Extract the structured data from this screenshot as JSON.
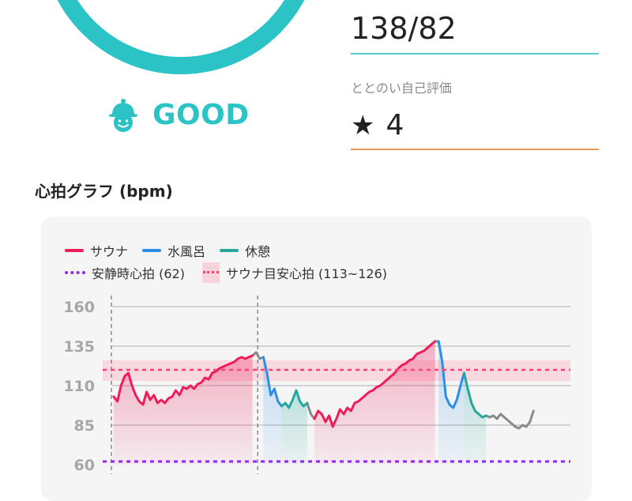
{
  "summary": {
    "status_label": "GOOD",
    "status_icon": "smiling-sauna-hat-icon",
    "accent_color": "#2cc3c7"
  },
  "blood_pressure": {
    "value": "138/82"
  },
  "rating": {
    "label": "ととのい自己評価",
    "star": "★",
    "value": "4"
  },
  "section": {
    "title": "心拍グラフ (bpm)"
  },
  "legend": {
    "sauna": "サウナ",
    "cold_bath": "水風呂",
    "rest": "休憩",
    "resting_hr": "安静時心拍 (62)",
    "sauna_target": "サウナ目安心拍 (113~126)"
  },
  "colors": {
    "sauna": "#ef1c5a",
    "cold_bath": "#2b8ee8",
    "rest": "#25a89c",
    "other": "#8a8a8a",
    "resting_hr": "#8a2be2",
    "sauna_target_line": "#f0457a",
    "sauna_target_band": "#f9d3dc"
  },
  "chart_data": {
    "type": "line",
    "y_ticks": [
      "160",
      "135",
      "110",
      "85",
      "60"
    ],
    "ylim": [
      60,
      160
    ],
    "resting_hr": 62,
    "sauna_target_range": [
      113,
      126
    ],
    "sauna_target_line": 120,
    "series": [
      {
        "name": "サウナ",
        "segments": [
          [
            [
              0,
              103
            ],
            [
              1,
              100
            ],
            [
              2,
              110
            ],
            [
              3,
              116
            ],
            [
              4,
              118
            ],
            [
              5,
              110
            ],
            [
              6,
              104
            ],
            [
              7,
              100
            ],
            [
              8,
              98
            ],
            [
              9,
              106
            ],
            [
              10,
              101
            ],
            [
              11,
              104
            ],
            [
              12,
              99
            ],
            [
              13,
              101
            ],
            [
              14,
              99
            ],
            [
              15,
              102
            ],
            [
              16,
              103
            ],
            [
              17,
              107
            ],
            [
              18,
              104
            ],
            [
              19,
              109
            ],
            [
              20,
              108
            ],
            [
              21,
              110
            ],
            [
              22,
              108
            ],
            [
              23,
              111
            ],
            [
              24,
              112
            ],
            [
              25,
              115
            ],
            [
              26,
              114
            ],
            [
              27,
              118
            ],
            [
              28,
              119
            ],
            [
              29,
              121
            ],
            [
              30,
              122
            ],
            [
              31,
              123
            ],
            [
              32,
              124
            ],
            [
              33,
              125
            ],
            [
              34,
              127
            ],
            [
              35,
              128
            ],
            [
              36,
              127
            ],
            [
              37,
              128
            ],
            [
              38,
              129
            ]
          ],
          [
            [
              55,
              89
            ],
            [
              56,
              94
            ],
            [
              57,
              92
            ],
            [
              58,
              87
            ],
            [
              59,
              91
            ],
            [
              60,
              84
            ],
            [
              61,
              89
            ],
            [
              62,
              95
            ],
            [
              63,
              92
            ],
            [
              64,
              96
            ],
            [
              65,
              94
            ],
            [
              66,
              99
            ],
            [
              67,
              100
            ],
            [
              68,
              102
            ],
            [
              69,
              104
            ],
            [
              70,
              106
            ],
            [
              71,
              107
            ],
            [
              72,
              109
            ],
            [
              73,
              110
            ],
            [
              74,
              112
            ],
            [
              75,
              114
            ],
            [
              76,
              116
            ],
            [
              77,
              118
            ],
            [
              78,
              121
            ],
            [
              79,
              123
            ],
            [
              80,
              124
            ],
            [
              81,
              126
            ],
            [
              82,
              127
            ],
            [
              83,
              130
            ],
            [
              84,
              131
            ],
            [
              85,
              132
            ],
            [
              86,
              134
            ],
            [
              87,
              136
            ],
            [
              88,
              138
            ]
          ]
        ]
      },
      {
        "name": "水風呂",
        "segments": [
          [
            [
              41,
              128
            ],
            [
              42,
              118
            ],
            [
              43,
              104
            ],
            [
              44,
              108
            ],
            [
              45,
              100
            ],
            [
              46,
              97
            ]
          ],
          [
            [
              89,
              138
            ],
            [
              90,
              125
            ],
            [
              91,
              103
            ],
            [
              92,
              98
            ],
            [
              93,
              96
            ],
            [
              94,
              101
            ],
            [
              95,
              110
            ],
            [
              96,
              118
            ]
          ]
        ]
      },
      {
        "name": "休憩",
        "segments": [
          [
            [
              46,
              97
            ],
            [
              47,
              99
            ],
            [
              48,
              96
            ],
            [
              49,
              101
            ],
            [
              50,
              107
            ],
            [
              51,
              100
            ],
            [
              52,
              97
            ],
            [
              53,
              99
            ]
          ],
          [
            [
              96,
              118
            ],
            [
              97,
              108
            ],
            [
              98,
              99
            ],
            [
              99,
              94
            ],
            [
              100,
              92
            ],
            [
              101,
              90
            ],
            [
              102,
              91
            ]
          ]
        ]
      }
    ]
  }
}
